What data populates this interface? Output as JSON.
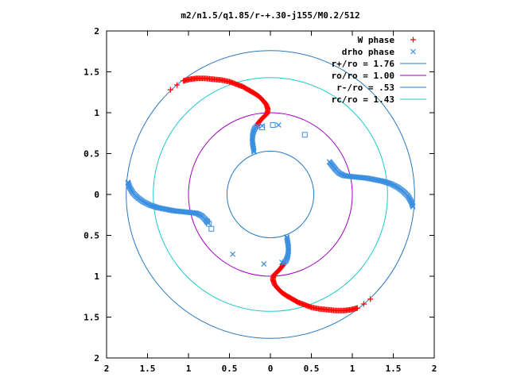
{
  "chart_data": {
    "type": "scatter",
    "title": "m2/n1.5/q1.85/r-+.30-j155/M0.2/512",
    "xlabel": "",
    "ylabel": "",
    "xlim": [
      -2,
      2
    ],
    "ylim": [
      -2,
      2
    ],
    "x_tick_labels": [
      "2",
      "1.5",
      "1",
      "0.5",
      "0",
      "0.5",
      "1",
      "1.5",
      "2"
    ],
    "y_tick_labels": [
      "2",
      "1.5",
      "1",
      "0.5",
      "0",
      "0.5",
      "1",
      "1.5",
      "2"
    ],
    "x_tick_values": [
      -2,
      -1.5,
      -1,
      -0.5,
      0,
      0.5,
      1,
      1.5,
      2
    ],
    "y_tick_values": [
      2,
      1.5,
      1,
      0.5,
      0,
      -0.5,
      -1,
      -1.5,
      -2
    ],
    "grid": false,
    "legend_position": "top-right",
    "colors": {
      "w_phase": "#ff0000",
      "drho_phase": "#3b8fe0",
      "circle_r_plus": "#2878c0",
      "circle_ro": "#a000c0",
      "circle_r_minus": "#2878c0",
      "circle_rc": "#20c8d0",
      "squares": "#3b8fe0"
    },
    "series": [
      {
        "name": "W phase",
        "kind": "points",
        "marker": "plus",
        "arms": [
          [
            [
              -1.22,
              1.28
            ],
            [
              -1.14,
              1.34
            ],
            [
              -1.06,
              1.39
            ],
            [
              -0.98,
              1.41
            ],
            [
              -0.9,
              1.42
            ],
            [
              -0.8,
              1.42
            ],
            [
              -0.7,
              1.41
            ],
            [
              -0.6,
              1.4
            ],
            [
              -0.5,
              1.38
            ],
            [
              -0.42,
              1.35
            ],
            [
              -0.34,
              1.32
            ],
            [
              -0.27,
              1.28
            ],
            [
              -0.2,
              1.24
            ],
            [
              -0.14,
              1.2
            ],
            [
              -0.09,
              1.15
            ],
            [
              -0.05,
              1.1
            ],
            [
              -0.03,
              1.04
            ],
            [
              -0.04,
              0.99
            ],
            [
              -0.08,
              0.95
            ],
            [
              -0.12,
              0.91
            ],
            [
              -0.15,
              0.87
            ],
            [
              -0.16,
              0.84
            ]
          ],
          [
            [
              1.22,
              -1.28
            ],
            [
              1.14,
              -1.34
            ],
            [
              1.06,
              -1.39
            ],
            [
              0.98,
              -1.41
            ],
            [
              0.9,
              -1.42
            ],
            [
              0.8,
              -1.42
            ],
            [
              0.7,
              -1.41
            ],
            [
              0.6,
              -1.4
            ],
            [
              0.5,
              -1.38
            ],
            [
              0.42,
              -1.35
            ],
            [
              0.34,
              -1.32
            ],
            [
              0.27,
              -1.28
            ],
            [
              0.2,
              -1.24
            ],
            [
              0.14,
              -1.2
            ],
            [
              0.09,
              -1.15
            ],
            [
              0.05,
              -1.1
            ],
            [
              0.03,
              -1.04
            ],
            [
              0.04,
              -0.99
            ],
            [
              0.08,
              -0.95
            ],
            [
              0.12,
              -0.91
            ],
            [
              0.15,
              -0.87
            ],
            [
              0.16,
              -0.84
            ]
          ]
        ]
      },
      {
        "name": "drho phase",
        "kind": "points",
        "marker": "cross",
        "arms": [
          [
            [
              1.74,
              -0.15
            ],
            [
              1.72,
              -0.09
            ],
            [
              1.68,
              -0.02
            ],
            [
              1.62,
              0.04
            ],
            [
              1.55,
              0.09
            ],
            [
              1.47,
              0.13
            ],
            [
              1.38,
              0.16
            ],
            [
              1.28,
              0.18
            ],
            [
              1.18,
              0.2
            ],
            [
              1.08,
              0.21
            ],
            [
              0.98,
              0.22
            ],
            [
              0.9,
              0.23
            ],
            [
              0.84,
              0.26
            ],
            [
              0.8,
              0.3
            ],
            [
              0.76,
              0.35
            ],
            [
              0.72,
              0.4
            ]
          ],
          [
            [
              -1.74,
              0.15
            ],
            [
              -1.72,
              0.09
            ],
            [
              -1.68,
              0.02
            ],
            [
              -1.62,
              -0.04
            ],
            [
              -1.55,
              -0.09
            ],
            [
              -1.47,
              -0.13
            ],
            [
              -1.38,
              -0.16
            ],
            [
              -1.28,
              -0.18
            ],
            [
              -1.18,
              -0.2
            ],
            [
              -1.08,
              -0.21
            ],
            [
              -0.98,
              -0.22
            ],
            [
              -0.9,
              -0.23
            ],
            [
              -0.84,
              -0.26
            ],
            [
              -0.8,
              -0.3
            ],
            [
              -0.76,
              -0.35
            ]
          ],
          [
            [
              -0.16,
              0.84
            ],
            [
              -0.19,
              0.81
            ],
            [
              -0.21,
              0.76
            ],
            [
              -0.22,
              0.7
            ],
            [
              -0.22,
              0.64
            ],
            [
              -0.21,
              0.58
            ],
            [
              -0.2,
              0.52
            ]
          ],
          [
            [
              0.16,
              -0.84
            ],
            [
              0.19,
              -0.81
            ],
            [
              0.21,
              -0.76
            ],
            [
              0.22,
              -0.7
            ],
            [
              0.22,
              -0.64
            ],
            [
              0.21,
              -0.58
            ],
            [
              0.2,
              -0.52
            ]
          ]
        ],
        "isolated": [
          [
            -0.46,
            -0.73
          ],
          [
            -0.08,
            -0.85
          ],
          [
            0.14,
            -0.83
          ],
          [
            -0.1,
            0.84
          ],
          [
            0.1,
            0.85
          ]
        ]
      },
      {
        "name": "",
        "kind": "squares",
        "points": [
          [
            0.42,
            0.73
          ],
          [
            0.03,
            0.85
          ],
          [
            -0.1,
            0.82
          ],
          [
            -0.75,
            -0.36
          ],
          [
            -0.77,
            -0.33
          ],
          [
            -0.72,
            -0.42
          ]
        ]
      },
      {
        "name": "r+/ro = 1.76",
        "kind": "circle",
        "radius": 1.76
      },
      {
        "name": "ro/ro = 1.00",
        "kind": "circle",
        "radius": 1.0
      },
      {
        "name": "r-/ro = .53",
        "kind": "circle",
        "radius": 0.53
      },
      {
        "name": "rc/ro = 1.43",
        "kind": "circle",
        "radius": 1.43
      }
    ]
  }
}
